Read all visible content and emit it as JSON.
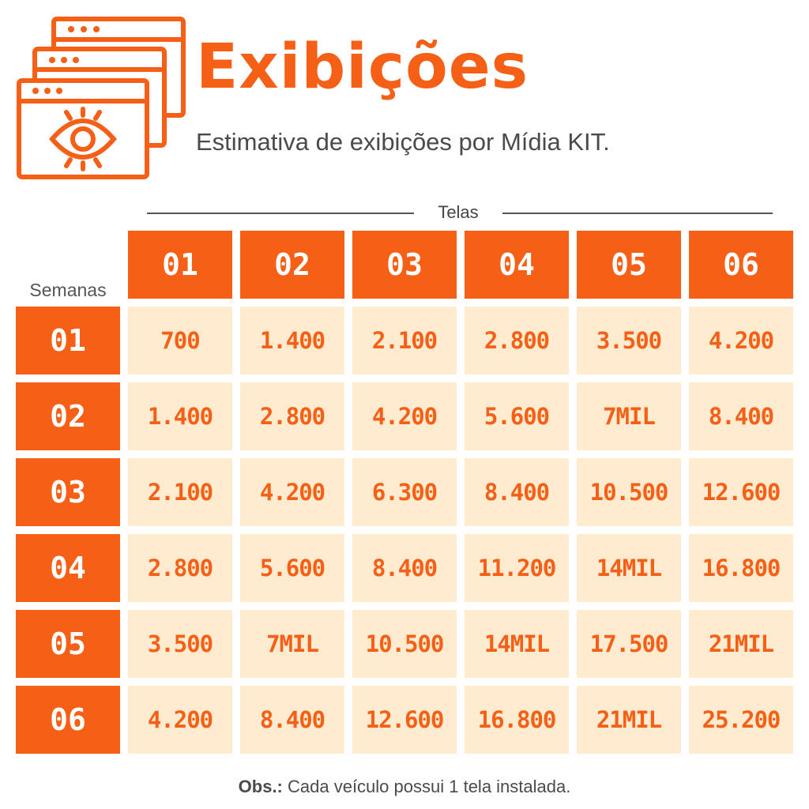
{
  "header": {
    "title": "Exibições",
    "subtitle": "Estimativa de exibições por Mídia KIT.",
    "icon": "browser-windows-eye-icon"
  },
  "table": {
    "column_group_label": "Telas",
    "row_group_label": "Semanas",
    "columns": [
      "01",
      "02",
      "03",
      "04",
      "05",
      "06"
    ],
    "rows": [
      {
        "label": "01",
        "values": [
          "700",
          "1.400",
          "2.100",
          "2.800",
          "3.500",
          "4.200"
        ]
      },
      {
        "label": "02",
        "values": [
          "1.400",
          "2.800",
          "4.200",
          "5.600",
          "7MIL",
          "8.400"
        ]
      },
      {
        "label": "03",
        "values": [
          "2.100",
          "4.200",
          "6.300",
          "8.400",
          "10.500",
          "12.600"
        ]
      },
      {
        "label": "04",
        "values": [
          "2.800",
          "5.600",
          "8.400",
          "11.200",
          "14MIL",
          "16.800"
        ]
      },
      {
        "label": "05",
        "values": [
          "3.500",
          "7MIL",
          "10.500",
          "14MIL",
          "17.500",
          "21MIL"
        ]
      },
      {
        "label": "06",
        "values": [
          "4.200",
          "8.400",
          "12.600",
          "16.800",
          "21MIL",
          "25.200"
        ]
      }
    ]
  },
  "footer": {
    "obs_label": "Obs.:",
    "obs_text": " Cada veículo possui 1 tela instalada."
  },
  "colors": {
    "accent": "#f55f16",
    "cell_bg": "#feebd0",
    "text": "#4a4a4a"
  }
}
